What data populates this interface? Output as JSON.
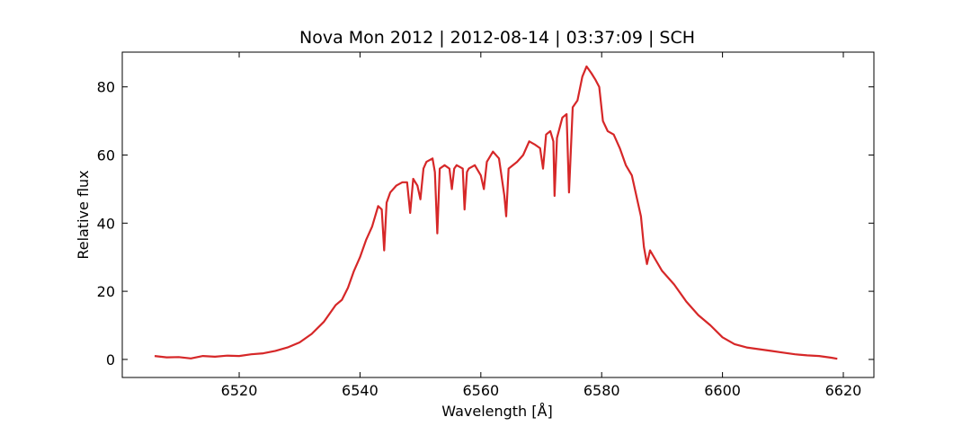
{
  "chart_data": {
    "type": "line",
    "title": "Nova Mon 2012 | 2012-08-14 | 03:37:09 | SCH",
    "x_label": "Wavelength [Å]",
    "y_label": "Relative flux",
    "x": [
      6506,
      6508,
      6510,
      6512,
      6514,
      6516,
      6518,
      6520,
      6522,
      6524,
      6526,
      6528,
      6530,
      6532,
      6534,
      6536,
      6537,
      6538,
      6539,
      6540,
      6541,
      6542,
      6543,
      6543.6,
      6544,
      6544.4,
      6545,
      6546,
      6547,
      6547.8,
      6548.3,
      6548.8,
      6549.5,
      6550,
      6550.5,
      6551,
      6552,
      6552.4,
      6552.8,
      6553.2,
      6554,
      6554.8,
      6555.2,
      6555.6,
      6556,
      6557,
      6557.3,
      6557.7,
      6558,
      6559,
      6560,
      6560.5,
      6561,
      6562,
      6563,
      6563.9,
      6564.2,
      6564.6,
      6566,
      6567,
      6568,
      6569,
      6569.8,
      6570.3,
      6570.8,
      6571.5,
      6572,
      6572.2,
      6572.6,
      6573.5,
      6574.2,
      6574.6,
      6575.2,
      6576,
      6576.8,
      6577.5,
      6578.3,
      6579,
      6579.6,
      6580.2,
      6581,
      6582,
      6583,
      6584,
      6585,
      6586,
      6586.5,
      6587,
      6587.5,
      6588,
      6589,
      6590,
      6592,
      6594,
      6596,
      6598,
      6600,
      6602,
      6604,
      6606,
      6608,
      6610,
      6612,
      6614,
      6616,
      6618,
      6619
    ],
    "series": [
      {
        "color": "#d62728",
        "values": [
          1,
          0.6,
          0.7,
          0.3,
          1,
          0.8,
          1.1,
          1,
          1.5,
          1.8,
          2.5,
          3.5,
          5,
          7.5,
          11,
          16,
          17.5,
          21,
          26,
          30,
          35,
          39,
          45,
          44,
          32,
          46,
          49,
          51,
          52,
          52,
          43,
          53,
          51,
          47,
          56,
          58,
          59,
          55,
          37,
          56,
          57,
          56,
          50,
          56,
          57,
          56,
          44,
          55,
          56,
          57,
          54,
          50,
          58,
          61,
          59,
          48,
          42,
          56,
          58,
          60,
          64,
          63,
          62,
          56,
          66,
          67,
          64,
          48,
          65,
          71,
          72,
          49,
          74,
          76,
          83,
          86,
          84,
          82,
          80,
          70,
          67,
          66,
          62,
          57,
          54,
          46,
          42,
          33,
          28,
          32,
          29,
          26,
          22,
          17,
          13,
          10,
          6.5,
          4.5,
          3.5,
          3,
          2.5,
          2,
          1.5,
          1.2,
          1,
          0.5,
          0.2
        ]
      }
    ],
    "xlim": [
      6500.65,
      6625.06
    ],
    "ylim": [
      -5.3,
      90.2
    ],
    "xticks": [
      6520,
      6540,
      6560,
      6580,
      6600,
      6620
    ],
    "yticks": [
      0,
      20,
      40,
      60,
      80
    ]
  }
}
